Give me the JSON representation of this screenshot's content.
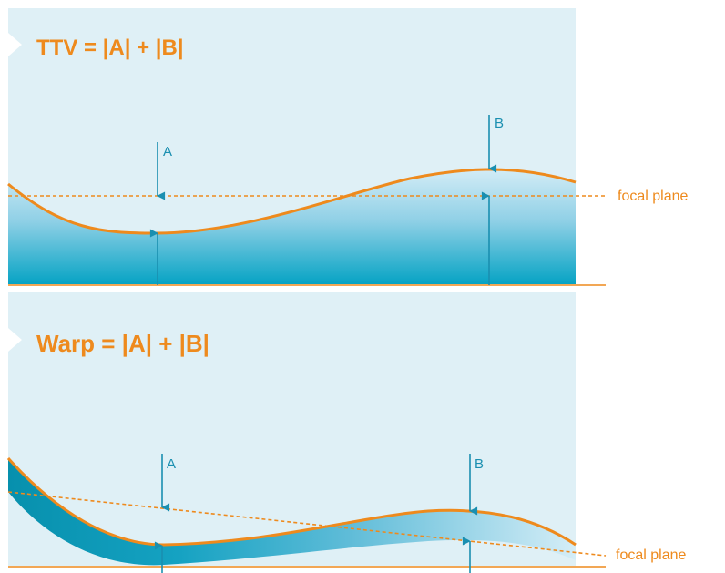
{
  "panels": [
    {
      "title": "TTV = |A| + |B|",
      "marker_a_label": "A",
      "marker_b_label": "B",
      "focal_plane_label": "focal plane"
    },
    {
      "title": "Warp = |A| + |B|",
      "marker_a_label": "A",
      "marker_b_label": "B",
      "focal_plane_label": "focal plane"
    }
  ],
  "watermark": "",
  "colors": {
    "panel_background": "#dff0f6",
    "accent_orange": "#ee8a1d",
    "marker_blue": "#1a8fb0",
    "fill_teal_dark": "#0aa6c6",
    "fill_teal_light": "#cfe9f4"
  }
}
